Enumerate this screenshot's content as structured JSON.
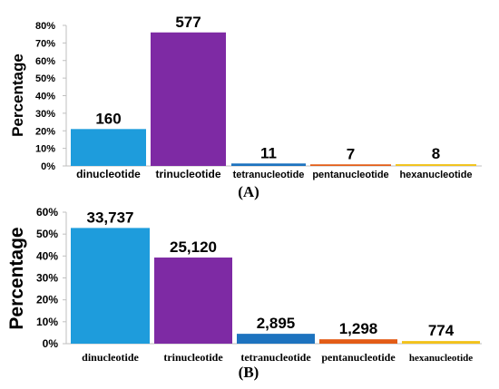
{
  "chart_data": [
    {
      "type": "bar",
      "panel_label": "(A)",
      "ylabel": "Percentage",
      "categories": [
        "dinucleotide",
        "trinucleotide",
        "tetranucleotide",
        "pentanucleotide",
        "hexanucleotide"
      ],
      "values": [
        21,
        76,
        1.4,
        0.9,
        1.0
      ],
      "data_labels": [
        "160",
        "577",
        "11",
        "7",
        "8"
      ],
      "colors": [
        "#1e9cdc",
        "#7e2aa4",
        "#1d73bf",
        "#e35c16",
        "#f2c21b"
      ],
      "ylim": [
        0,
        80
      ],
      "yticks": [
        0,
        10,
        20,
        30,
        40,
        50,
        60,
        70,
        80
      ],
      "ytick_labels": [
        "0%",
        "10%",
        "20%",
        "30%",
        "40%",
        "50%",
        "60%",
        "70%",
        "80%"
      ],
      "grid": false,
      "legend": "none"
    },
    {
      "type": "bar",
      "panel_label": "(B)",
      "ylabel": "Percentage",
      "categories": [
        "dinucleotide",
        "trinucleotide",
        "tetranucleotide",
        "pentanucleotide",
        "hexanucleotide"
      ],
      "values": [
        52.8,
        39.3,
        4.5,
        2.0,
        1.2
      ],
      "data_labels": [
        "33,737",
        "25,120",
        "2,895",
        "1,298",
        "774"
      ],
      "colors": [
        "#1e9cdc",
        "#7e2aa4",
        "#1d73bf",
        "#e35c16",
        "#f2c21b"
      ],
      "ylim": [
        0,
        60
      ],
      "yticks": [
        0,
        10,
        20,
        30,
        40,
        50,
        60
      ],
      "ytick_labels": [
        "0%",
        "10%",
        "20%",
        "30%",
        "40%",
        "50%",
        "60%"
      ],
      "grid": false,
      "legend": "none"
    }
  ]
}
